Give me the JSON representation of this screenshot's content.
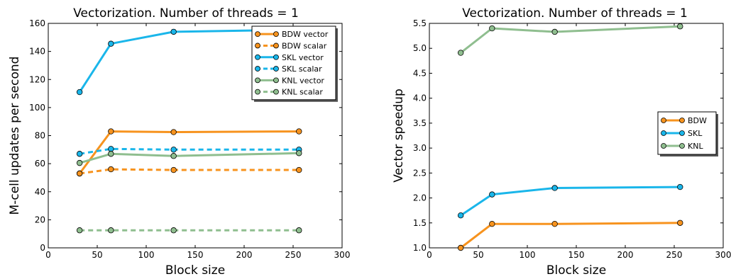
{
  "chart_data": [
    {
      "type": "line",
      "title": "Vectorization. Number of threads = 1",
      "xlabel": "Block size",
      "ylabel": "M-cell updates per second",
      "xlim": [
        0,
        300
      ],
      "ylim": [
        0,
        160
      ],
      "xticks": [
        0,
        50,
        100,
        150,
        200,
        250,
        300
      ],
      "yticks": [
        0,
        20,
        40,
        60,
        80,
        100,
        120,
        140,
        160
      ],
      "grid": false,
      "legend_position": "top-right",
      "x": [
        32,
        64,
        128,
        256
      ],
      "series": [
        {
          "name": "BDW vector",
          "values": [
            53,
            83,
            82.5,
            83
          ],
          "color": "#f7931e",
          "dash": false
        },
        {
          "name": "BDW scalar",
          "values": [
            53,
            56,
            55.5,
            55.5
          ],
          "color": "#f7931e",
          "dash": true
        },
        {
          "name": "SKL vector",
          "values": [
            111,
            145.5,
            154,
            155.5
          ],
          "color": "#1ab6ea",
          "dash": false
        },
        {
          "name": "SKL scalar",
          "values": [
            67,
            70.5,
            70,
            70
          ],
          "color": "#1ab6ea",
          "dash": true
        },
        {
          "name": "KNL vector",
          "values": [
            60.5,
            67,
            65.5,
            67.5
          ],
          "color": "#8fbe8f",
          "dash": false
        },
        {
          "name": "KNL scalar",
          "values": [
            12.5,
            12.5,
            12.5,
            12.5
          ],
          "color": "#8fbe8f",
          "dash": true
        }
      ]
    },
    {
      "type": "line",
      "title": "Vectorization.  Number of threads  = 1",
      "xlabel": "Block size",
      "ylabel": "Vector speedup",
      "xlim": [
        0,
        300
      ],
      "ylim": [
        1.0,
        5.5
      ],
      "xticks": [
        0,
        50,
        100,
        150,
        200,
        250,
        300
      ],
      "yticks": [
        1.0,
        1.5,
        2.0,
        2.5,
        3.0,
        3.5,
        4.0,
        4.5,
        5.0,
        5.5
      ],
      "grid": false,
      "legend_position": "center-right",
      "x": [
        32,
        64,
        128,
        256
      ],
      "series": [
        {
          "name": "BDW",
          "values": [
            1.0,
            1.48,
            1.48,
            1.5
          ],
          "color": "#f7931e",
          "dash": false
        },
        {
          "name": "SKL",
          "values": [
            1.65,
            2.07,
            2.2,
            2.22
          ],
          "color": "#1ab6ea",
          "dash": false
        },
        {
          "name": "KNL",
          "values": [
            4.91,
            5.4,
            5.33,
            5.44
          ],
          "color": "#8fbe8f",
          "dash": false
        }
      ]
    }
  ]
}
